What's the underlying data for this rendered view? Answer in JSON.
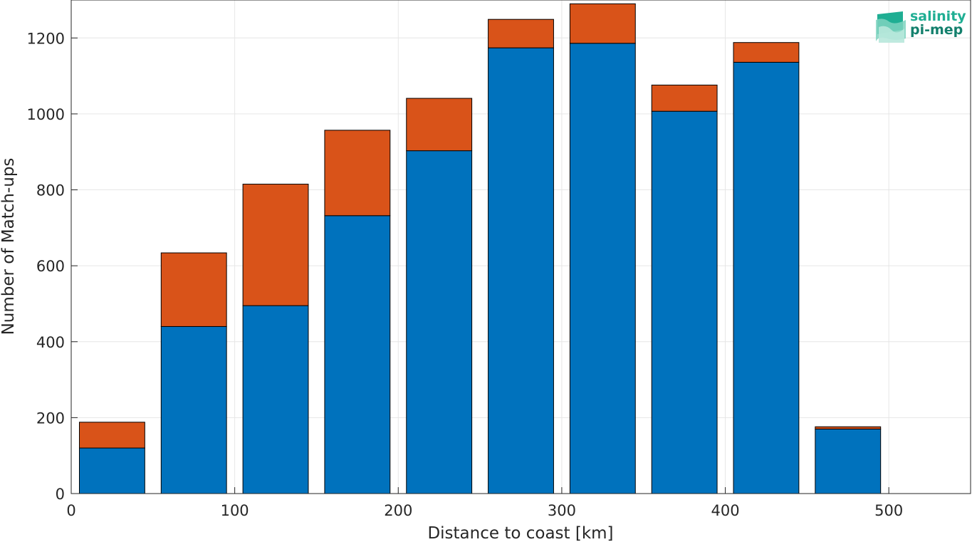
{
  "chart_data": {
    "type": "bar",
    "stacked": true,
    "title": "",
    "xlabel": "Distance to coast [km]",
    "ylabel": "Number of Match-ups",
    "xlim": [
      0,
      550
    ],
    "ylim": [
      0,
      1300
    ],
    "grid": true,
    "xticks": [
      0,
      100,
      200,
      300,
      400,
      500
    ],
    "yticks": [
      0,
      200,
      400,
      600,
      800,
      1000,
      1200
    ],
    "bin_width": 50,
    "bar_fraction": 0.8,
    "x": [
      25,
      75,
      125,
      175,
      225,
      275,
      325,
      375,
      425,
      475,
      525
    ],
    "series": [
      {
        "color": "#0072bd",
        "values": [
          120,
          440,
          495,
          732,
          903,
          1174,
          1186,
          1007,
          1136,
          170,
          0
        ]
      },
      {
        "color": "#d95319",
        "values": [
          68,
          194,
          320,
          225,
          138,
          75,
          104,
          69,
          52,
          6,
          0
        ]
      }
    ]
  },
  "logo": {
    "line1": "salinity",
    "line2": "pi-mep"
  }
}
